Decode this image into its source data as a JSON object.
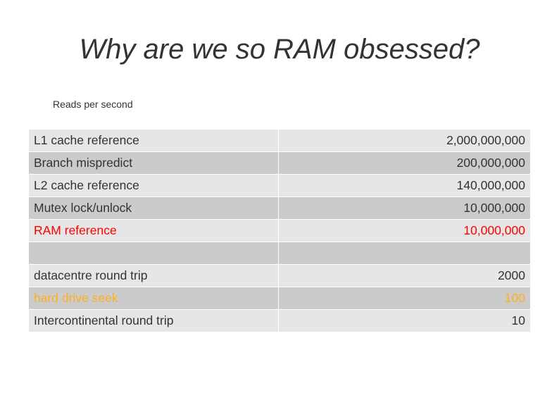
{
  "title": "Why are we so RAM obsessed?",
  "subtitle": "Reads per second",
  "colors": {
    "text": "#333333",
    "row_light": "#e6e6e6",
    "row_dark": "#cbcbcb",
    "highlight_red": "#ff0000",
    "highlight_orange": "#ffb020"
  },
  "rows": [
    {
      "name": "L1 cache reference",
      "value": "2,000,000,000"
    },
    {
      "name": "Branch mispredict",
      "value": "200,000,000"
    },
    {
      "name": "L2 cache reference",
      "value": "140,000,000"
    },
    {
      "name": "Mutex lock/unlock",
      "value": "10,000,000"
    },
    {
      "name": "RAM reference",
      "value": "10,000,000"
    },
    {
      "name": "",
      "value": ""
    },
    {
      "name": "datacentre round trip",
      "value": "2000"
    },
    {
      "name": "hard drive seek",
      "value": "100"
    },
    {
      "name": "Intercontinental round trip",
      "value": "10"
    }
  ]
}
